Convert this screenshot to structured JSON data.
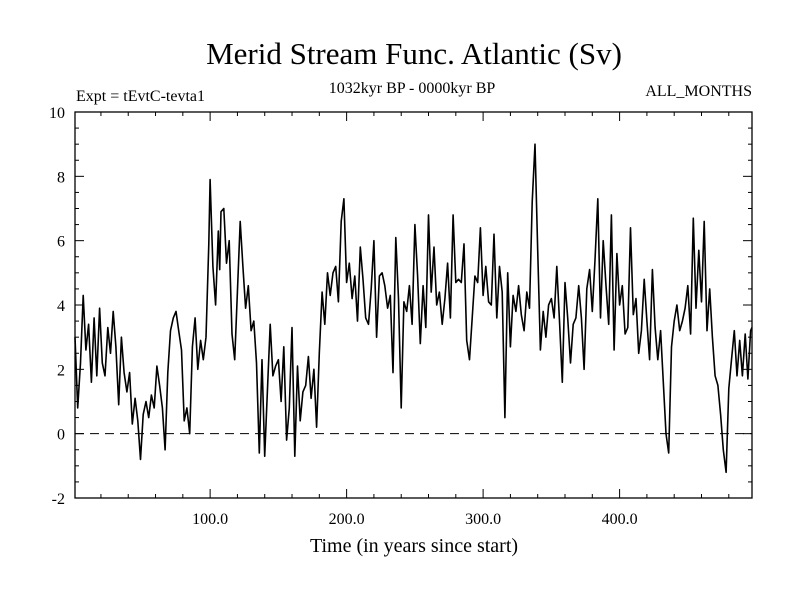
{
  "chart_data": {
    "type": "line",
    "title": "Merid Stream Func. Atlantic (Sv)",
    "subtitle_left": "Expt = tEvtC-tevta1",
    "subtitle_center": "1032kyr BP - 0000kyr BP",
    "subtitle_right": "ALL_MONTHS",
    "xlabel": "Time (in years since start)",
    "ylabel": "",
    "xlim": [
      1,
      497
    ],
    "ylim": [
      -2,
      10
    ],
    "x_ticks": [
      100,
      200,
      300,
      400
    ],
    "x_tick_labels": [
      "100.0",
      "200.0",
      "300.0",
      "400.0"
    ],
    "y_ticks": [
      -2,
      0,
      2,
      4,
      6,
      8,
      10
    ],
    "y_tick_labels": [
      "-2",
      "0",
      "2",
      "4",
      "6",
      "8",
      "10"
    ],
    "zero_line": 0,
    "series": [
      {
        "name": "Merid Stream Func. Atlantic",
        "x_start": 1,
        "x_step": 1,
        "anchors": [
          [
            1,
            3.0
          ],
          [
            3,
            0.8
          ],
          [
            5,
            2.2
          ],
          [
            7,
            4.3
          ],
          [
            9,
            2.6
          ],
          [
            11,
            3.4
          ],
          [
            13,
            1.6
          ],
          [
            15,
            3.6
          ],
          [
            17,
            1.8
          ],
          [
            19,
            3.9
          ],
          [
            21,
            2.2
          ],
          [
            23,
            1.8
          ],
          [
            25,
            3.3
          ],
          [
            27,
            2.5
          ],
          [
            29,
            3.8
          ],
          [
            31,
            2.7
          ],
          [
            33,
            0.9
          ],
          [
            35,
            3.0
          ],
          [
            37,
            1.9
          ],
          [
            39,
            1.3
          ],
          [
            41,
            1.9
          ],
          [
            43,
            0.3
          ],
          [
            45,
            1.1
          ],
          [
            47,
            0.4
          ],
          [
            49,
            -0.8
          ],
          [
            51,
            0.6
          ],
          [
            53,
            1.0
          ],
          [
            55,
            0.5
          ],
          [
            57,
            1.2
          ],
          [
            59,
            0.8
          ],
          [
            61,
            2.1
          ],
          [
            63,
            1.5
          ],
          [
            65,
            0.8
          ],
          [
            67,
            -0.5
          ],
          [
            69,
            1.9
          ],
          [
            71,
            3.2
          ],
          [
            73,
            3.6
          ],
          [
            75,
            3.8
          ],
          [
            77,
            3.2
          ],
          [
            79,
            2.6
          ],
          [
            81,
            0.4
          ],
          [
            83,
            0.8
          ],
          [
            85,
            0.0
          ],
          [
            87,
            2.7
          ],
          [
            89,
            3.6
          ],
          [
            91,
            2.0
          ],
          [
            93,
            2.9
          ],
          [
            95,
            2.3
          ],
          [
            97,
            3.0
          ],
          [
            99,
            5.9
          ],
          [
            100,
            7.9
          ],
          [
            102,
            5.2
          ],
          [
            104,
            4.0
          ],
          [
            106,
            6.3
          ],
          [
            107,
            5.1
          ],
          [
            108,
            6.9
          ],
          [
            110,
            7.0
          ],
          [
            112,
            5.3
          ],
          [
            114,
            6.0
          ],
          [
            116,
            3.1
          ],
          [
            118,
            2.3
          ],
          [
            120,
            4.4
          ],
          [
            122,
            6.6
          ],
          [
            124,
            5.2
          ],
          [
            126,
            3.9
          ],
          [
            128,
            4.6
          ],
          [
            130,
            3.2
          ],
          [
            132,
            3.5
          ],
          [
            134,
            2.2
          ],
          [
            136,
            -0.6
          ],
          [
            138,
            2.3
          ],
          [
            140,
            -0.7
          ],
          [
            142,
            1.4
          ],
          [
            144,
            3.4
          ],
          [
            146,
            1.8
          ],
          [
            148,
            2.1
          ],
          [
            150,
            2.3
          ],
          [
            152,
            1.0
          ],
          [
            154,
            2.7
          ],
          [
            156,
            -0.2
          ],
          [
            158,
            0.8
          ],
          [
            160,
            3.3
          ],
          [
            162,
            -0.7
          ],
          [
            164,
            2.1
          ],
          [
            166,
            0.4
          ],
          [
            168,
            1.3
          ],
          [
            170,
            1.5
          ],
          [
            172,
            2.4
          ],
          [
            174,
            1.1
          ],
          [
            176,
            2.0
          ],
          [
            178,
            0.2
          ],
          [
            180,
            2.5
          ],
          [
            182,
            4.4
          ],
          [
            184,
            3.4
          ],
          [
            186,
            5.0
          ],
          [
            188,
            4.3
          ],
          [
            190,
            5.0
          ],
          [
            192,
            5.2
          ],
          [
            194,
            4.1
          ],
          [
            196,
            6.6
          ],
          [
            198,
            7.3
          ],
          [
            200,
            4.7
          ],
          [
            202,
            5.3
          ],
          [
            204,
            4.2
          ],
          [
            206,
            4.9
          ],
          [
            208,
            3.5
          ],
          [
            210,
            5.8
          ],
          [
            212,
            4.8
          ],
          [
            214,
            3.6
          ],
          [
            216,
            3.4
          ],
          [
            218,
            4.5
          ],
          [
            220,
            6.0
          ],
          [
            222,
            3.0
          ],
          [
            224,
            4.9
          ],
          [
            226,
            5.0
          ],
          [
            228,
            4.6
          ],
          [
            230,
            3.9
          ],
          [
            232,
            4.3
          ],
          [
            234,
            1.9
          ],
          [
            236,
            6.1
          ],
          [
            238,
            4.2
          ],
          [
            240,
            0.8
          ],
          [
            242,
            4.1
          ],
          [
            244,
            3.8
          ],
          [
            246,
            4.6
          ],
          [
            248,
            3.4
          ],
          [
            250,
            6.5
          ],
          [
            252,
            4.9
          ],
          [
            254,
            2.8
          ],
          [
            256,
            4.6
          ],
          [
            258,
            3.3
          ],
          [
            260,
            6.8
          ],
          [
            262,
            4.4
          ],
          [
            264,
            5.8
          ],
          [
            266,
            4.0
          ],
          [
            268,
            4.4
          ],
          [
            270,
            3.4
          ],
          [
            272,
            4.2
          ],
          [
            274,
            5.3
          ],
          [
            276,
            3.6
          ],
          [
            278,
            6.8
          ],
          [
            280,
            4.7
          ],
          [
            282,
            4.8
          ],
          [
            284,
            4.7
          ],
          [
            286,
            5.9
          ],
          [
            288,
            2.9
          ],
          [
            290,
            2.3
          ],
          [
            292,
            3.6
          ],
          [
            294,
            4.9
          ],
          [
            296,
            4.7
          ],
          [
            298,
            6.4
          ],
          [
            300,
            4.3
          ],
          [
            302,
            5.2
          ],
          [
            304,
            4.1
          ],
          [
            306,
            4.0
          ],
          [
            308,
            6.2
          ],
          [
            310,
            3.6
          ],
          [
            312,
            5.2
          ],
          [
            314,
            4.4
          ],
          [
            316,
            0.5
          ],
          [
            318,
            5.0
          ],
          [
            320,
            2.7
          ],
          [
            322,
            4.3
          ],
          [
            324,
            3.8
          ],
          [
            326,
            4.6
          ],
          [
            328,
            3.7
          ],
          [
            330,
            3.2
          ],
          [
            332,
            4.4
          ],
          [
            334,
            3.9
          ],
          [
            336,
            7.2
          ],
          [
            338,
            9.0
          ],
          [
            340,
            5.7
          ],
          [
            342,
            2.6
          ],
          [
            344,
            3.8
          ],
          [
            346,
            3.0
          ],
          [
            348,
            4.0
          ],
          [
            350,
            4.2
          ],
          [
            352,
            3.6
          ],
          [
            354,
            5.2
          ],
          [
            356,
            3.5
          ],
          [
            358,
            1.6
          ],
          [
            360,
            4.7
          ],
          [
            362,
            3.6
          ],
          [
            364,
            2.2
          ],
          [
            366,
            3.4
          ],
          [
            368,
            3.6
          ],
          [
            370,
            4.6
          ],
          [
            372,
            3.6
          ],
          [
            374,
            2.0
          ],
          [
            376,
            4.5
          ],
          [
            378,
            5.1
          ],
          [
            380,
            3.8
          ],
          [
            382,
            5.4
          ],
          [
            384,
            7.3
          ],
          [
            386,
            3.6
          ],
          [
            388,
            6.0
          ],
          [
            390,
            4.6
          ],
          [
            392,
            3.4
          ],
          [
            394,
            6.8
          ],
          [
            396,
            2.6
          ],
          [
            398,
            5.6
          ],
          [
            400,
            4.0
          ],
          [
            402,
            4.6
          ],
          [
            404,
            3.1
          ],
          [
            406,
            3.3
          ],
          [
            408,
            6.4
          ],
          [
            410,
            3.7
          ],
          [
            412,
            4.2
          ],
          [
            414,
            2.5
          ],
          [
            416,
            3.2
          ],
          [
            418,
            4.8
          ],
          [
            420,
            3.5
          ],
          [
            422,
            2.3
          ],
          [
            424,
            5.1
          ],
          [
            426,
            3.3
          ],
          [
            428,
            2.3
          ],
          [
            430,
            3.2
          ],
          [
            432,
            1.6
          ],
          [
            434,
            0.0
          ],
          [
            436,
            -0.6
          ],
          [
            438,
            2.7
          ],
          [
            440,
            3.5
          ],
          [
            442,
            4.0
          ],
          [
            444,
            3.2
          ],
          [
            446,
            3.5
          ],
          [
            448,
            3.9
          ],
          [
            450,
            4.6
          ],
          [
            452,
            3.1
          ],
          [
            454,
            6.7
          ],
          [
            456,
            3.9
          ],
          [
            458,
            5.7
          ],
          [
            460,
            4.1
          ],
          [
            462,
            6.6
          ],
          [
            464,
            3.2
          ],
          [
            466,
            4.5
          ],
          [
            468,
            3.0
          ],
          [
            470,
            1.8
          ],
          [
            472,
            1.5
          ],
          [
            474,
            0.6
          ],
          [
            476,
            -0.5
          ],
          [
            478,
            -1.2
          ],
          [
            480,
            1.4
          ],
          [
            482,
            2.3
          ],
          [
            484,
            3.2
          ],
          [
            486,
            1.8
          ],
          [
            488,
            2.9
          ],
          [
            490,
            1.8
          ],
          [
            492,
            3.1
          ],
          [
            494,
            1.7
          ],
          [
            496,
            3.2
          ],
          [
            497,
            3.3
          ]
        ]
      }
    ]
  }
}
